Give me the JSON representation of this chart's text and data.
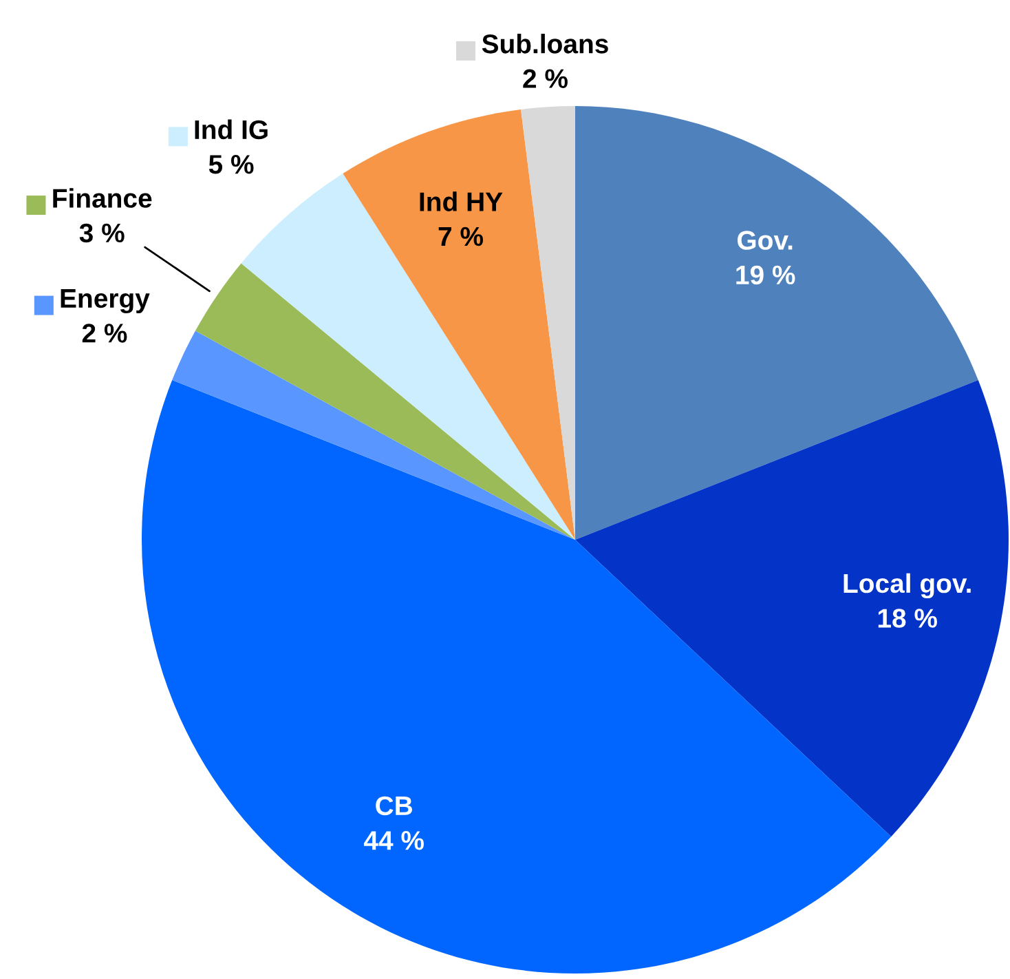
{
  "chart_data": {
    "type": "pie",
    "categories": [
      "Gov.",
      "Local gov.",
      "CB",
      "Energy",
      "Finance",
      "Ind IG",
      "Ind HY",
      "Sub.loans"
    ],
    "values": [
      19,
      18,
      44,
      2,
      3,
      5,
      7,
      2
    ],
    "value_labels": [
      "19 %",
      "18 %",
      "44 %",
      "2 %",
      "3 %",
      "5 %",
      "7 %",
      "2 %"
    ],
    "colors": [
      "#4f81bd",
      "#0433c8",
      "#0066ff",
      "#5a96ff",
      "#9bbb59",
      "#cceeff",
      "#f79646",
      "#d9d9d9"
    ],
    "legend": "top left"
  }
}
